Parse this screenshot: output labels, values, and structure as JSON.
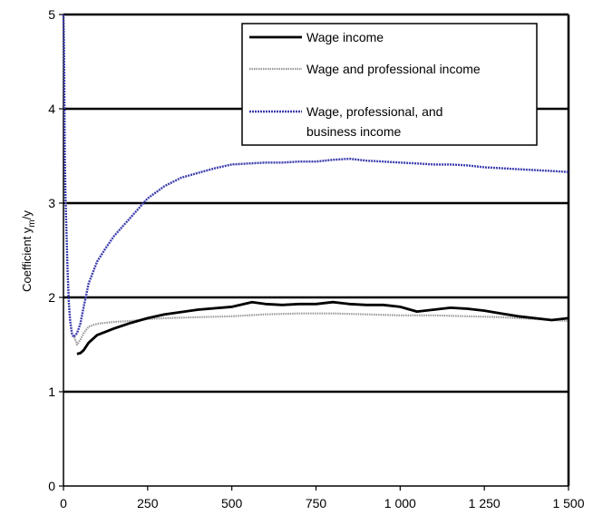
{
  "chart_data": {
    "type": "line",
    "title": "",
    "xlabel": "",
    "ylabel": "Coefficient y",
    "ylabel_sub": "m",
    "ylabel_suffix": "/y",
    "xlim": [
      0,
      1500
    ],
    "ylim": [
      0,
      5
    ],
    "x_ticks": [
      0,
      250,
      500,
      750,
      1000,
      1250,
      1500
    ],
    "x_tick_labels": [
      "0",
      "250",
      "500",
      "750",
      "1 000",
      "1 250",
      "1 500"
    ],
    "y_ticks": [
      0,
      1,
      2,
      3,
      4,
      5
    ],
    "y_tick_labels": [
      "0",
      "1",
      "2",
      "3",
      "4",
      "5"
    ],
    "grid": "horizontal",
    "legend_position": "top-right",
    "series": [
      {
        "name": "Wage income",
        "color": "#000000",
        "style": "solid-thick",
        "x": [
          40,
          50,
          60,
          75,
          100,
          150,
          200,
          250,
          300,
          400,
          500,
          560,
          600,
          650,
          700,
          750,
          800,
          850,
          900,
          950,
          1000,
          1050,
          1100,
          1150,
          1200,
          1250,
          1300,
          1350,
          1400,
          1450,
          1500
        ],
        "y": [
          1.4,
          1.41,
          1.44,
          1.52,
          1.6,
          1.67,
          1.73,
          1.78,
          1.82,
          1.87,
          1.9,
          1.95,
          1.93,
          1.92,
          1.93,
          1.93,
          1.95,
          1.93,
          1.92,
          1.92,
          1.9,
          1.85,
          1.87,
          1.89,
          1.88,
          1.86,
          1.83,
          1.8,
          1.78,
          1.76,
          1.78
        ]
      },
      {
        "name": "Wage and professional income",
        "color": "#9a9a9a",
        "style": "solid-thin",
        "x": [
          30,
          40,
          50,
          60,
          75,
          100,
          150,
          200,
          250,
          300,
          400,
          500,
          600,
          700,
          800,
          900,
          1000,
          1100,
          1200,
          1300,
          1400,
          1500
        ],
        "y": [
          1.6,
          1.5,
          1.55,
          1.62,
          1.69,
          1.72,
          1.74,
          1.75,
          1.77,
          1.78,
          1.79,
          1.8,
          1.82,
          1.83,
          1.83,
          1.82,
          1.81,
          1.81,
          1.8,
          1.79,
          1.77,
          1.75
        ]
      },
      {
        "name": "Wage, professional, and business income",
        "name_lines": [
          "Wage, professional, and",
          "business income"
        ],
        "color": "#3c3cae",
        "style": "dotted",
        "x": [
          0,
          2,
          4,
          6,
          8,
          12,
          16,
          20,
          25,
          30,
          40,
          50,
          60,
          75,
          100,
          125,
          150,
          200,
          250,
          300,
          350,
          400,
          450,
          500,
          550,
          600,
          650,
          700,
          750,
          800,
          850,
          900,
          950,
          1000,
          1050,
          1100,
          1150,
          1200,
          1250,
          1300,
          1350,
          1400,
          1450,
          1500
        ],
        "y": [
          5.0,
          4.6,
          3.5,
          3.1,
          2.8,
          2.3,
          1.95,
          1.75,
          1.62,
          1.58,
          1.62,
          1.72,
          1.9,
          2.15,
          2.38,
          2.52,
          2.65,
          2.85,
          3.05,
          3.18,
          3.27,
          3.32,
          3.37,
          3.41,
          3.42,
          3.43,
          3.43,
          3.44,
          3.44,
          3.46,
          3.47,
          3.45,
          3.44,
          3.43,
          3.42,
          3.41,
          3.41,
          3.4,
          3.38,
          3.37,
          3.36,
          3.35,
          3.34,
          3.33
        ]
      }
    ]
  }
}
